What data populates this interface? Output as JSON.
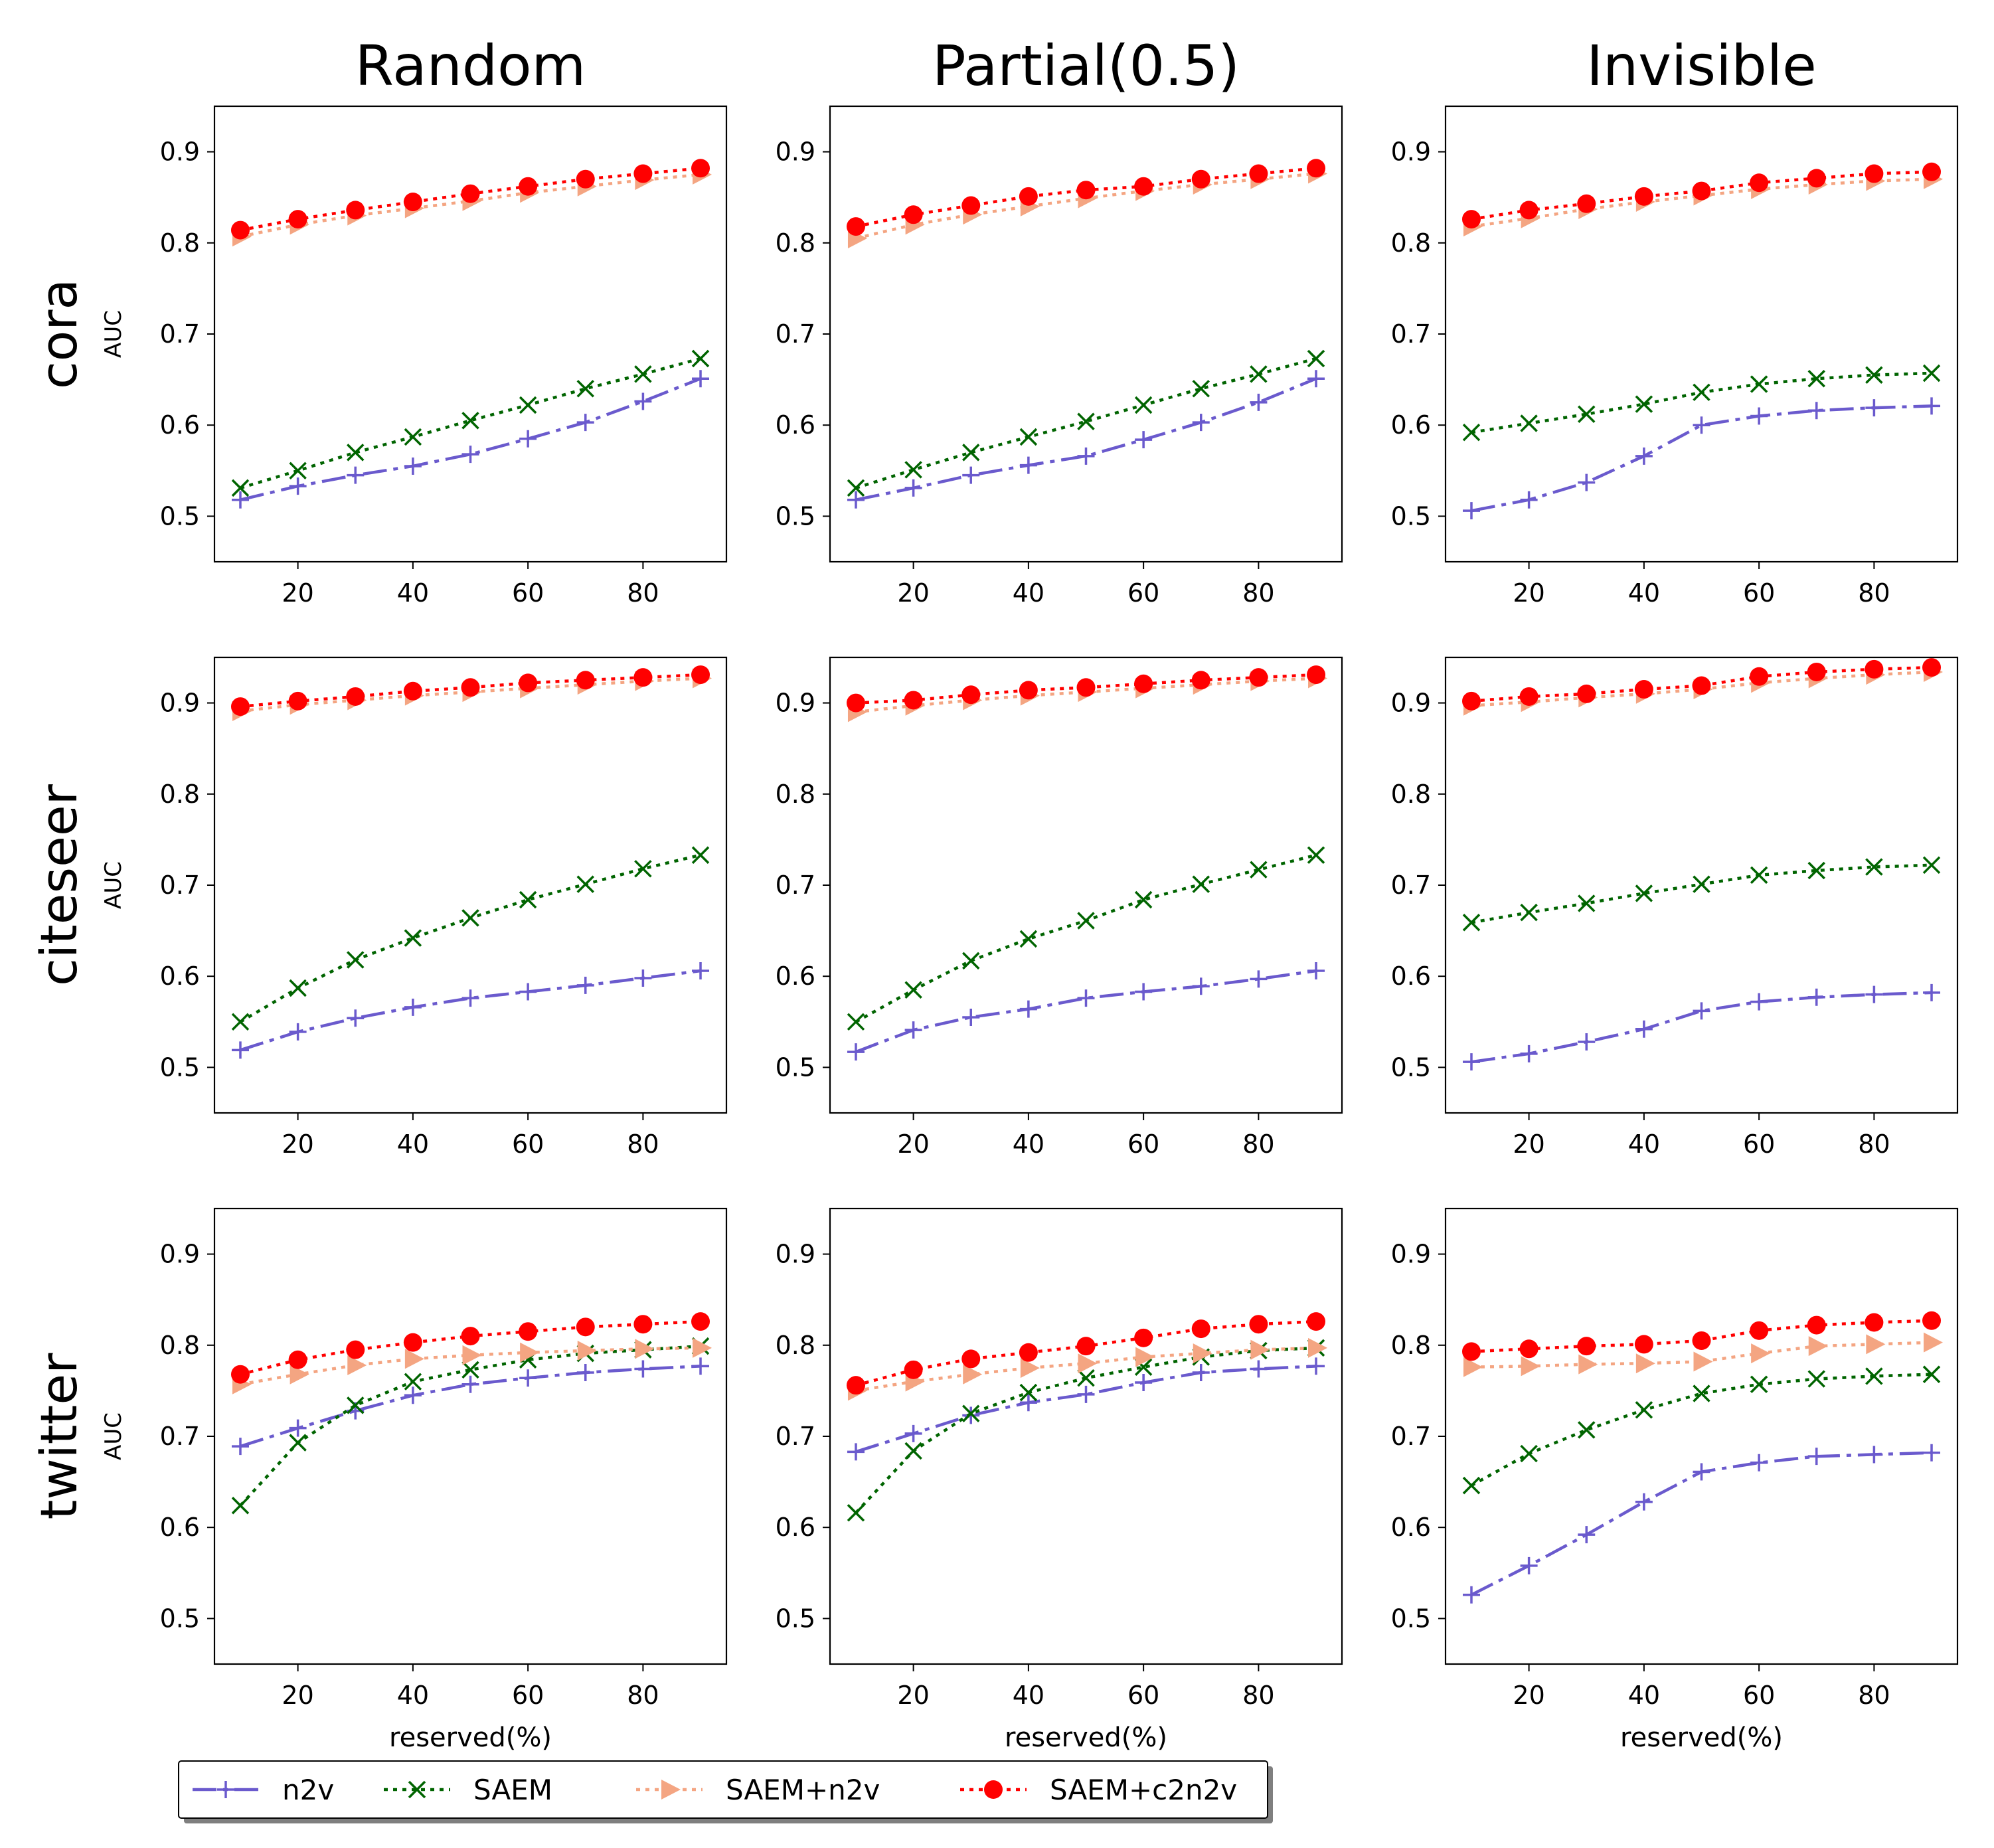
{
  "figure": {
    "columns": [
      "Random",
      "Partial(0.5)",
      "Invisible"
    ],
    "rows": [
      "cora",
      "citeseer",
      "twitter"
    ],
    "ylabel": "AUC",
    "xlabel": "reserved(%)"
  },
  "legend": [
    {
      "key": "n2v",
      "label": "n2v",
      "color": "#6a5acd",
      "marker": "plus",
      "dash": "dashdot"
    },
    {
      "key": "saem",
      "label": "SAEM",
      "color": "#006400",
      "marker": "x",
      "dash": "dotted"
    },
    {
      "key": "saem_n2v",
      "label": "SAEM+n2v",
      "color": "#f4a582",
      "marker": "triangle-right",
      "dash": "dotted"
    },
    {
      "key": "saem_c2n2v",
      "label": "SAEM+c2n2v",
      "color": "#ff0000",
      "marker": "circle",
      "dash": "dotted"
    }
  ],
  "chart_data": [
    {
      "type": "line",
      "dataset": "cora",
      "setting": "Random",
      "x": [
        10,
        20,
        30,
        40,
        50,
        60,
        70,
        80,
        90
      ],
      "xticks": [
        20,
        40,
        60,
        80
      ],
      "yticks": [
        0.5,
        0.6,
        0.7,
        0.8,
        0.9
      ],
      "xlim": [
        5.5,
        94.5
      ],
      "ylim": [
        0.45,
        0.95
      ],
      "series": [
        {
          "name": "n2v",
          "values": [
            0.518,
            0.533,
            0.545,
            0.555,
            0.568,
            0.585,
            0.603,
            0.626,
            0.651
          ]
        },
        {
          "name": "SAEM",
          "values": [
            0.531,
            0.55,
            0.57,
            0.587,
            0.605,
            0.622,
            0.64,
            0.656,
            0.673
          ]
        },
        {
          "name": "SAEM+n2v",
          "values": [
            0.807,
            0.82,
            0.83,
            0.838,
            0.846,
            0.855,
            0.862,
            0.869,
            0.875
          ]
        },
        {
          "name": "SAEM+c2n2v",
          "values": [
            0.814,
            0.826,
            0.836,
            0.845,
            0.854,
            0.862,
            0.87,
            0.876,
            0.882
          ]
        }
      ]
    },
    {
      "type": "line",
      "dataset": "cora",
      "setting": "Partial(0.5)",
      "x": [
        10,
        20,
        30,
        40,
        50,
        60,
        70,
        80,
        90
      ],
      "xticks": [
        20,
        40,
        60,
        80
      ],
      "yticks": [
        0.5,
        0.6,
        0.7,
        0.8,
        0.9
      ],
      "xlim": [
        5.5,
        94.5
      ],
      "ylim": [
        0.45,
        0.95
      ],
      "series": [
        {
          "name": "n2v",
          "values": [
            0.518,
            0.531,
            0.545,
            0.556,
            0.566,
            0.584,
            0.603,
            0.625,
            0.651
          ]
        },
        {
          "name": "SAEM",
          "values": [
            0.531,
            0.551,
            0.57,
            0.587,
            0.604,
            0.622,
            0.64,
            0.656,
            0.673
          ]
        },
        {
          "name": "SAEM+n2v",
          "values": [
            0.805,
            0.82,
            0.831,
            0.84,
            0.849,
            0.857,
            0.864,
            0.87,
            0.876
          ]
        },
        {
          "name": "SAEM+c2n2v",
          "values": [
            0.818,
            0.831,
            0.841,
            0.851,
            0.858,
            0.862,
            0.87,
            0.876,
            0.882
          ]
        }
      ]
    },
    {
      "type": "line",
      "dataset": "cora",
      "setting": "Invisible",
      "x": [
        10,
        20,
        30,
        40,
        50,
        60,
        70,
        80,
        90
      ],
      "xticks": [
        20,
        40,
        60,
        80
      ],
      "yticks": [
        0.5,
        0.6,
        0.7,
        0.8,
        0.9
      ],
      "xlim": [
        5.5,
        94.5
      ],
      "ylim": [
        0.45,
        0.95
      ],
      "series": [
        {
          "name": "n2v",
          "values": [
            0.506,
            0.518,
            0.537,
            0.566,
            0.6,
            0.61,
            0.616,
            0.619,
            0.621
          ]
        },
        {
          "name": "SAEM",
          "values": [
            0.592,
            0.602,
            0.612,
            0.623,
            0.636,
            0.645,
            0.651,
            0.655,
            0.657
          ]
        },
        {
          "name": "SAEM+n2v",
          "values": [
            0.818,
            0.827,
            0.837,
            0.845,
            0.852,
            0.859,
            0.864,
            0.868,
            0.87
          ]
        },
        {
          "name": "SAEM+c2n2v",
          "values": [
            0.826,
            0.836,
            0.843,
            0.851,
            0.857,
            0.866,
            0.871,
            0.876,
            0.878
          ]
        }
      ]
    },
    {
      "type": "line",
      "dataset": "citeseer",
      "setting": "Random",
      "x": [
        10,
        20,
        30,
        40,
        50,
        60,
        70,
        80,
        90
      ],
      "xticks": [
        20,
        40,
        60,
        80
      ],
      "yticks": [
        0.5,
        0.6,
        0.7,
        0.8,
        0.9
      ],
      "xlim": [
        5.5,
        94.5
      ],
      "ylim": [
        0.45,
        0.95
      ],
      "series": [
        {
          "name": "n2v",
          "values": [
            0.519,
            0.539,
            0.554,
            0.566,
            0.576,
            0.583,
            0.59,
            0.598,
            0.606
          ]
        },
        {
          "name": "SAEM",
          "values": [
            0.55,
            0.587,
            0.618,
            0.642,
            0.664,
            0.684,
            0.701,
            0.718,
            0.733
          ]
        },
        {
          "name": "SAEM+n2v",
          "values": [
            0.891,
            0.898,
            0.903,
            0.908,
            0.912,
            0.916,
            0.92,
            0.924,
            0.927
          ]
        },
        {
          "name": "SAEM+c2n2v",
          "values": [
            0.896,
            0.902,
            0.907,
            0.913,
            0.917,
            0.922,
            0.925,
            0.928,
            0.931
          ]
        }
      ]
    },
    {
      "type": "line",
      "dataset": "citeseer",
      "setting": "Partial(0.5)",
      "x": [
        10,
        20,
        30,
        40,
        50,
        60,
        70,
        80,
        90
      ],
      "xticks": [
        20,
        40,
        60,
        80
      ],
      "yticks": [
        0.5,
        0.6,
        0.7,
        0.8,
        0.9
      ],
      "xlim": [
        5.5,
        94.5
      ],
      "ylim": [
        0.45,
        0.95
      ],
      "series": [
        {
          "name": "n2v",
          "values": [
            0.517,
            0.541,
            0.555,
            0.564,
            0.576,
            0.583,
            0.589,
            0.597,
            0.606
          ]
        },
        {
          "name": "SAEM",
          "values": [
            0.55,
            0.585,
            0.617,
            0.641,
            0.661,
            0.684,
            0.701,
            0.717,
            0.733
          ]
        },
        {
          "name": "SAEM+n2v",
          "values": [
            0.89,
            0.897,
            0.903,
            0.908,
            0.912,
            0.916,
            0.92,
            0.924,
            0.927
          ]
        },
        {
          "name": "SAEM+c2n2v",
          "values": [
            0.9,
            0.903,
            0.909,
            0.914,
            0.917,
            0.921,
            0.925,
            0.928,
            0.931
          ]
        }
      ]
    },
    {
      "type": "line",
      "dataset": "citeseer",
      "setting": "Invisible",
      "x": [
        10,
        20,
        30,
        40,
        50,
        60,
        70,
        80,
        90
      ],
      "xticks": [
        20,
        40,
        60,
        80
      ],
      "yticks": [
        0.5,
        0.6,
        0.7,
        0.8,
        0.9
      ],
      "xlim": [
        5.5,
        94.5
      ],
      "ylim": [
        0.45,
        0.95
      ],
      "series": [
        {
          "name": "n2v",
          "values": [
            0.506,
            0.515,
            0.528,
            0.542,
            0.562,
            0.572,
            0.577,
            0.58,
            0.582
          ]
        },
        {
          "name": "SAEM",
          "values": [
            0.659,
            0.67,
            0.68,
            0.691,
            0.701,
            0.711,
            0.716,
            0.72,
            0.722
          ]
        },
        {
          "name": "SAEM+n2v",
          "values": [
            0.897,
            0.901,
            0.906,
            0.91,
            0.915,
            0.922,
            0.927,
            0.931,
            0.934
          ]
        },
        {
          "name": "SAEM+c2n2v",
          "values": [
            0.902,
            0.907,
            0.91,
            0.915,
            0.919,
            0.929,
            0.934,
            0.937,
            0.939
          ]
        }
      ]
    },
    {
      "type": "line",
      "dataset": "twitter",
      "setting": "Random",
      "x": [
        10,
        20,
        30,
        40,
        50,
        60,
        70,
        80,
        90
      ],
      "xticks": [
        20,
        40,
        60,
        80
      ],
      "yticks": [
        0.5,
        0.6,
        0.7,
        0.8,
        0.9
      ],
      "xlim": [
        5.5,
        94.5
      ],
      "ylim": [
        0.45,
        0.95
      ],
      "series": [
        {
          "name": "n2v",
          "values": [
            0.689,
            0.709,
            0.728,
            0.745,
            0.757,
            0.764,
            0.77,
            0.774,
            0.777
          ]
        },
        {
          "name": "SAEM",
          "values": [
            0.624,
            0.693,
            0.734,
            0.76,
            0.773,
            0.784,
            0.791,
            0.795,
            0.799
          ]
        },
        {
          "name": "SAEM+n2v",
          "values": [
            0.757,
            0.768,
            0.778,
            0.785,
            0.789,
            0.792,
            0.794,
            0.796,
            0.797
          ]
        },
        {
          "name": "SAEM+c2n2v",
          "values": [
            0.768,
            0.784,
            0.795,
            0.803,
            0.81,
            0.815,
            0.82,
            0.823,
            0.826
          ]
        }
      ]
    },
    {
      "type": "line",
      "dataset": "twitter",
      "setting": "Partial(0.5)",
      "x": [
        10,
        20,
        30,
        40,
        50,
        60,
        70,
        80,
        90
      ],
      "xticks": [
        20,
        40,
        60,
        80
      ],
      "yticks": [
        0.5,
        0.6,
        0.7,
        0.8,
        0.9
      ],
      "xlim": [
        5.5,
        94.5
      ],
      "ylim": [
        0.45,
        0.95
      ],
      "series": [
        {
          "name": "n2v",
          "values": [
            0.683,
            0.703,
            0.723,
            0.737,
            0.746,
            0.759,
            0.77,
            0.774,
            0.777
          ]
        },
        {
          "name": "SAEM",
          "values": [
            0.616,
            0.684,
            0.725,
            0.748,
            0.764,
            0.776,
            0.787,
            0.794,
            0.797
          ]
        },
        {
          "name": "SAEM+n2v",
          "values": [
            0.75,
            0.76,
            0.768,
            0.775,
            0.78,
            0.787,
            0.791,
            0.795,
            0.797
          ]
        },
        {
          "name": "SAEM+c2n2v",
          "values": [
            0.756,
            0.773,
            0.785,
            0.792,
            0.799,
            0.808,
            0.818,
            0.823,
            0.826
          ]
        }
      ]
    },
    {
      "type": "line",
      "dataset": "twitter",
      "setting": "Invisible",
      "x": [
        10,
        20,
        30,
        40,
        50,
        60,
        70,
        80,
        90
      ],
      "xticks": [
        20,
        40,
        60,
        80
      ],
      "yticks": [
        0.5,
        0.6,
        0.7,
        0.8,
        0.9
      ],
      "xlim": [
        5.5,
        94.5
      ],
      "ylim": [
        0.45,
        0.95
      ],
      "series": [
        {
          "name": "n2v",
          "values": [
            0.526,
            0.558,
            0.592,
            0.628,
            0.661,
            0.671,
            0.678,
            0.68,
            0.682
          ]
        },
        {
          "name": "SAEM",
          "values": [
            0.646,
            0.681,
            0.707,
            0.729,
            0.747,
            0.757,
            0.763,
            0.766,
            0.768
          ]
        },
        {
          "name": "SAEM+n2v",
          "values": [
            0.776,
            0.777,
            0.779,
            0.78,
            0.782,
            0.791,
            0.799,
            0.801,
            0.803
          ]
        },
        {
          "name": "SAEM+c2n2v",
          "values": [
            0.793,
            0.796,
            0.799,
            0.801,
            0.805,
            0.816,
            0.822,
            0.825,
            0.827
          ]
        }
      ]
    }
  ]
}
